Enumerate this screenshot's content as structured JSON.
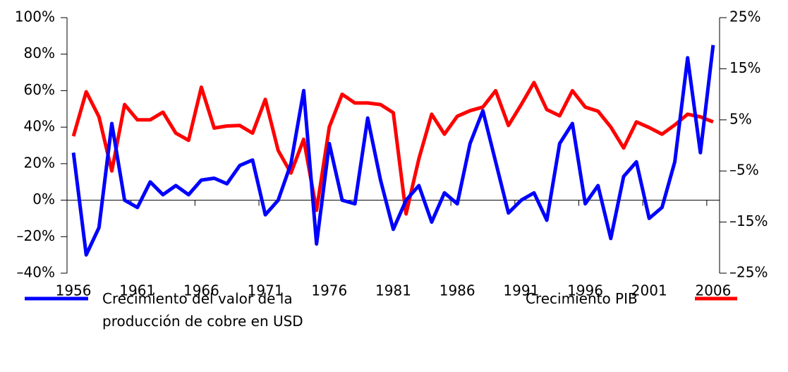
{
  "chart_data": {
    "type": "line",
    "categories": [
      1956,
      null,
      null,
      null,
      null,
      1961,
      null,
      null,
      null,
      null,
      1966,
      null,
      null,
      null,
      null,
      1971,
      null,
      null,
      null,
      null,
      1976,
      null,
      null,
      null,
      null,
      1981,
      null,
      null,
      null,
      null,
      1986,
      null,
      null,
      null,
      null,
      1991,
      null,
      null,
      null,
      null,
      1996,
      null,
      null,
      null,
      null,
      2001,
      null,
      null,
      null,
      null,
      2006
    ],
    "series": [
      {
        "name": "Crecimiento del valor de la producción de cobre en USD",
        "color": "#0000ff",
        "values": [
          26,
          -30,
          -15,
          42,
          0,
          -4,
          10,
          3,
          8,
          3,
          11,
          12,
          9,
          19,
          22,
          -8,
          0,
          20,
          60,
          -24,
          31,
          0,
          -2,
          45,
          11,
          -16,
          0,
          8,
          -12,
          4,
          -2,
          31,
          49,
          21,
          -7,
          0,
          4,
          -11,
          31,
          42,
          -2,
          8,
          -21,
          13,
          21,
          -10,
          -4,
          21,
          78,
          26,
          85
        ]
      },
      {
        "name": "Crecimiento PIB",
        "color": "#ff0000",
        "axis": "y2",
        "values": [
          1.8,
          10.5,
          5.6,
          -5,
          8,
          5,
          5,
          6.5,
          2.4,
          1,
          11.4,
          3.4,
          3.8,
          3.9,
          2.4,
          9,
          -1,
          -5.4,
          1.2,
          -12.7,
          3.6,
          10,
          8.3,
          8.3,
          8,
          6.4,
          -13.4,
          -2.6,
          6.1,
          2.2,
          5.7,
          6.8,
          7.5,
          10.7,
          3.9,
          8,
          12.3,
          7,
          5.8,
          10.7,
          7.5,
          6.7,
          3.6,
          -0.5,
          4.6,
          3.5,
          2.2,
          4,
          6.1,
          5.6,
          4.6
        ]
      }
    ],
    "ylim": [
      -40,
      100
    ],
    "yticks": [
      {
        "value": -40,
        "label": "–40%"
      },
      {
        "value": -20,
        "label": "–20%"
      },
      {
        "value": 0,
        "label": "0%"
      },
      {
        "value": 20,
        "label": "20%"
      },
      {
        "value": 40,
        "label": "40%"
      },
      {
        "value": 60,
        "label": "60%"
      },
      {
        "value": 80,
        "label": "80%"
      },
      {
        "value": 100,
        "label": "100%"
      }
    ],
    "y2lim": [
      -25,
      25
    ],
    "y2ticks": [
      {
        "value": -25,
        "label": "–25%"
      },
      {
        "value": -15,
        "label": "–15%"
      },
      {
        "value": -5,
        "label": "–5%"
      },
      {
        "value": 5,
        "label": "5%"
      },
      {
        "value": 15,
        "label": "15%"
      },
      {
        "value": 25,
        "label": "25%"
      }
    ],
    "grid": false,
    "legend": "bottom"
  }
}
